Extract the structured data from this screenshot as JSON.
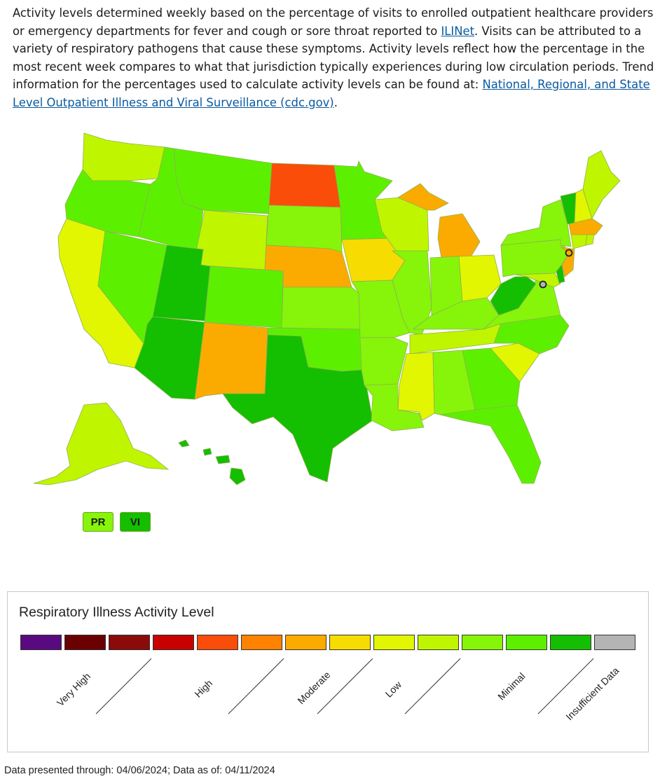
{
  "intro": {
    "text_before_ilinet": "Activity levels determined weekly based on the percentage of visits to enrolled outpatient healthcare providers or emergency departments for fever and cough or sore throat reported to ",
    "ilinet_link": "ILINet",
    "text_after_ilinet": ". Visits can be attributed to a variety of respiratory pathogens that cause these symptoms. Activity levels reflect how the percentage in the most recent week compares to what that jurisdiction typically experiences during low circulation periods. Trend information for the percentages used to calculate activity levels can be found at: ",
    "surveillance_link": "National, Regional, and State Level Outpatient Illness and Viral Surveillance (cdc.gov)",
    "end_period": "."
  },
  "level_colors": {
    "13": "#5a0a80",
    "12": "#6b0000",
    "11": "#8b0a0a",
    "10": "#c80000",
    "9": "#fa4d0a",
    "8": "#ff8200",
    "7": "#fbab00",
    "6": "#f6dc00",
    "5": "#e1f600",
    "4": "#c0f500",
    "3": "#86f50a",
    "2": "#5cf000",
    "1": "#14be00",
    "0": "#b4b4b4"
  },
  "map": {
    "territories": [
      {
        "label": "PR",
        "level": 3
      },
      {
        "label": "VI",
        "level": 1
      }
    ]
  },
  "legend": {
    "title": "Respiratory Illness Activity Level",
    "swatches": [
      {
        "level": 13,
        "color": "#5a0a80"
      },
      {
        "level": 12,
        "color": "#6b0000"
      },
      {
        "level": 11,
        "color": "#8b0a0a"
      },
      {
        "level": 10,
        "color": "#c80000"
      },
      {
        "level": 9,
        "color": "#fa4d0a"
      },
      {
        "level": 8,
        "color": "#ff8200"
      },
      {
        "level": 7,
        "color": "#fbab00"
      },
      {
        "level": 6,
        "color": "#f6dc00"
      },
      {
        "level": 5,
        "color": "#e1f600"
      },
      {
        "level": 4,
        "color": "#c0f500"
      },
      {
        "level": 3,
        "color": "#86f50a"
      },
      {
        "level": 2,
        "color": "#5cf000"
      },
      {
        "level": 1,
        "color": "#14be00"
      },
      {
        "level": 0,
        "color": "#b4b4b4"
      }
    ],
    "labels": [
      "Very High",
      "High",
      "Moderate",
      "Low",
      "Minimal",
      "Insufficient Data"
    ]
  },
  "footnote": "Data presented through: 04/06/2024; Data as of: 04/11/2024"
}
